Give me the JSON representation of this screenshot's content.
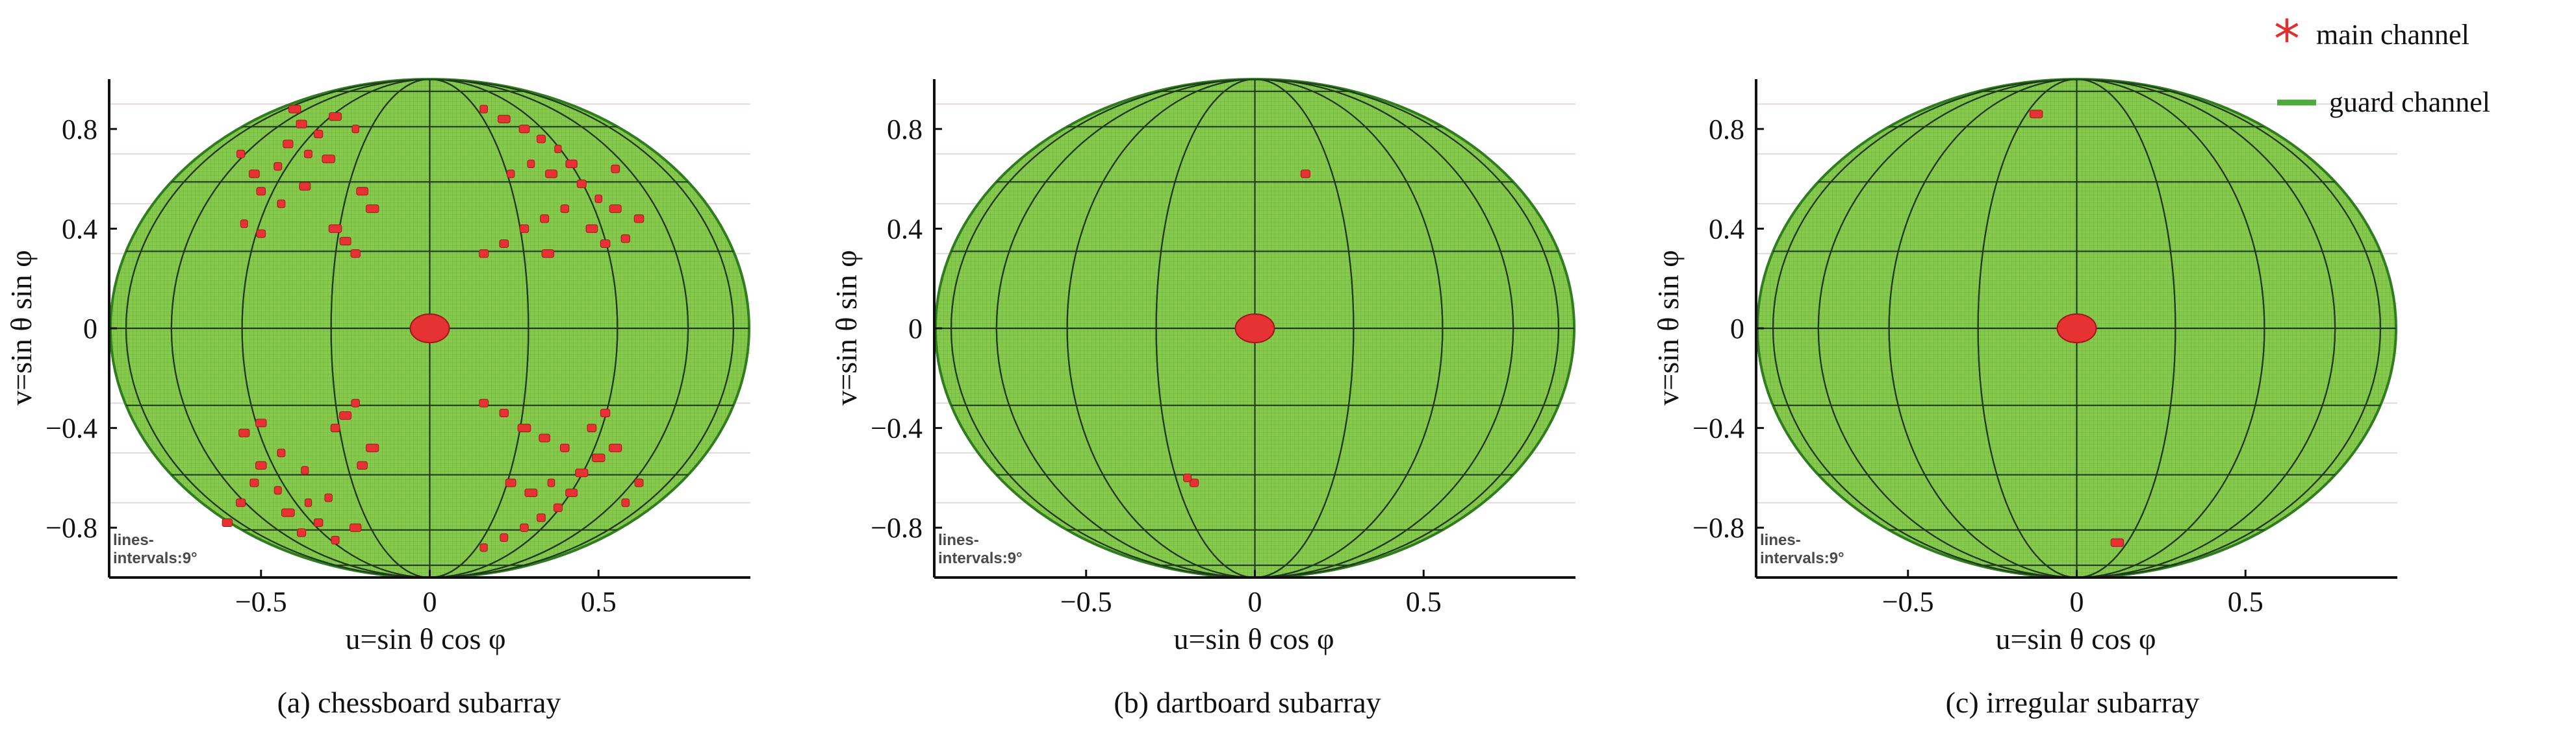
{
  "chart_data": [
    {
      "type": "scatter",
      "panel": "a",
      "caption": "(a) chessboard subarray",
      "xlabel": "u=sin θ cos φ",
      "ylabel": "v=sin θ sin φ",
      "xlim": [
        -0.95,
        0.95
      ],
      "ylim": [
        -1.0,
        1.0
      ],
      "xticks": [
        -0.5,
        0,
        0.5
      ],
      "xtick_labels": [
        "−0.5",
        "0",
        "0.5"
      ],
      "yticks": [
        -0.8,
        -0.4,
        0,
        0.4,
        0.8
      ],
      "ytick_labels": [
        "−0.8",
        "−0.4",
        "0",
        "0.4",
        "0.8"
      ],
      "grid_note": "lines-intervals:9°",
      "guard_region": "full visible hemisphere (u²+v²≤1), shown as ellipse",
      "main_channel_points": [
        {
          "u": 0.0,
          "v": 0.0,
          "size": "cluster"
        },
        {
          "u": -0.38,
          "v": 0.82
        },
        {
          "u": -0.33,
          "v": 0.78
        },
        {
          "u": -0.28,
          "v": 0.85
        },
        {
          "u": -0.22,
          "v": 0.8
        },
        {
          "u": -0.42,
          "v": 0.74
        },
        {
          "u": -0.36,
          "v": 0.7
        },
        {
          "u": -0.3,
          "v": 0.68
        },
        {
          "u": -0.45,
          "v": 0.65
        },
        {
          "u": -0.52,
          "v": 0.62
        },
        {
          "u": -0.56,
          "v": 0.7
        },
        {
          "u": -0.5,
          "v": 0.55
        },
        {
          "u": -0.44,
          "v": 0.5
        },
        {
          "u": -0.37,
          "v": 0.57
        },
        {
          "u": -0.2,
          "v": 0.55
        },
        {
          "u": -0.17,
          "v": 0.48
        },
        {
          "u": -0.5,
          "v": 0.38
        },
        {
          "u": -0.55,
          "v": 0.42
        },
        {
          "u": -0.25,
          "v": 0.35
        },
        {
          "u": -0.22,
          "v": 0.3
        },
        {
          "u": -0.28,
          "v": 0.4
        },
        {
          "u": -0.4,
          "v": 0.88
        },
        {
          "u": 0.16,
          "v": 0.88
        },
        {
          "u": 0.22,
          "v": 0.84
        },
        {
          "u": 0.28,
          "v": 0.8
        },
        {
          "u": 0.33,
          "v": 0.76
        },
        {
          "u": 0.38,
          "v": 0.72
        },
        {
          "u": 0.3,
          "v": 0.66
        },
        {
          "u": 0.24,
          "v": 0.62
        },
        {
          "u": 0.36,
          "v": 0.62
        },
        {
          "u": 0.42,
          "v": 0.66
        },
        {
          "u": 0.45,
          "v": 0.58
        },
        {
          "u": 0.5,
          "v": 0.52
        },
        {
          "u": 0.55,
          "v": 0.48
        },
        {
          "u": 0.4,
          "v": 0.48
        },
        {
          "u": 0.34,
          "v": 0.44
        },
        {
          "u": 0.28,
          "v": 0.4
        },
        {
          "u": 0.22,
          "v": 0.34
        },
        {
          "u": 0.16,
          "v": 0.3
        },
        {
          "u": 0.48,
          "v": 0.4
        },
        {
          "u": 0.52,
          "v": 0.34
        },
        {
          "u": 0.58,
          "v": 0.36
        },
        {
          "u": 0.62,
          "v": 0.44
        },
        {
          "u": 0.35,
          "v": 0.3
        },
        {
          "u": 0.55,
          "v": 0.64
        },
        {
          "u": -0.38,
          "v": -0.82
        },
        {
          "u": -0.33,
          "v": -0.78
        },
        {
          "u": -0.28,
          "v": -0.85
        },
        {
          "u": -0.22,
          "v": -0.8
        },
        {
          "u": -0.42,
          "v": -0.74
        },
        {
          "u": -0.36,
          "v": -0.7
        },
        {
          "u": -0.3,
          "v": -0.68
        },
        {
          "u": -0.45,
          "v": -0.65
        },
        {
          "u": -0.52,
          "v": -0.62
        },
        {
          "u": -0.56,
          "v": -0.7
        },
        {
          "u": -0.5,
          "v": -0.55
        },
        {
          "u": -0.44,
          "v": -0.5
        },
        {
          "u": -0.37,
          "v": -0.57
        },
        {
          "u": -0.2,
          "v": -0.55
        },
        {
          "u": -0.17,
          "v": -0.48
        },
        {
          "u": -0.5,
          "v": -0.38
        },
        {
          "u": -0.55,
          "v": -0.42
        },
        {
          "u": -0.25,
          "v": -0.35
        },
        {
          "u": -0.22,
          "v": -0.3
        },
        {
          "u": -0.28,
          "v": -0.4
        },
        {
          "u": -0.6,
          "v": -0.78
        },
        {
          "u": 0.16,
          "v": -0.88
        },
        {
          "u": 0.22,
          "v": -0.84
        },
        {
          "u": 0.28,
          "v": -0.8
        },
        {
          "u": 0.33,
          "v": -0.76
        },
        {
          "u": 0.38,
          "v": -0.72
        },
        {
          "u": 0.3,
          "v": -0.66
        },
        {
          "u": 0.24,
          "v": -0.62
        },
        {
          "u": 0.36,
          "v": -0.62
        },
        {
          "u": 0.42,
          "v": -0.66
        },
        {
          "u": 0.45,
          "v": -0.58
        },
        {
          "u": 0.5,
          "v": -0.52
        },
        {
          "u": 0.55,
          "v": -0.48
        },
        {
          "u": 0.4,
          "v": -0.48
        },
        {
          "u": 0.34,
          "v": -0.44
        },
        {
          "u": 0.28,
          "v": -0.4
        },
        {
          "u": 0.22,
          "v": -0.34
        },
        {
          "u": 0.16,
          "v": -0.3
        },
        {
          "u": 0.48,
          "v": -0.4
        },
        {
          "u": 0.52,
          "v": -0.34
        },
        {
          "u": 0.58,
          "v": -0.7
        },
        {
          "u": 0.62,
          "v": -0.62
        }
      ]
    },
    {
      "type": "scatter",
      "panel": "b",
      "caption": "(b) dartboard subarray",
      "xlabel": "u=sin θ cos φ",
      "ylabel": "v=sin θ sin φ",
      "xlim": [
        -0.95,
        0.95
      ],
      "ylim": [
        -1.0,
        1.0
      ],
      "xticks": [
        -0.5,
        0,
        0.5
      ],
      "xtick_labels": [
        "−0.5",
        "0",
        "0.5"
      ],
      "yticks": [
        -0.8,
        -0.4,
        0,
        0.4,
        0.8
      ],
      "ytick_labels": [
        "−0.8",
        "−0.4",
        "0",
        "0.4",
        "0.8"
      ],
      "grid_note": "lines-intervals:9°",
      "guard_region": "full visible hemisphere (u²+v²≤1), shown as ellipse",
      "main_channel_points": [
        {
          "u": 0.0,
          "v": 0.0,
          "size": "cluster"
        },
        {
          "u": 0.15,
          "v": 0.62
        },
        {
          "u": -0.18,
          "v": -0.62
        },
        {
          "u": -0.2,
          "v": -0.6
        }
      ]
    },
    {
      "type": "scatter",
      "panel": "c",
      "caption": "(c) irregular subarray",
      "xlabel": "u=sin θ cos φ",
      "ylabel": "v=sin θ sin φ",
      "xlim": [
        -0.95,
        0.95
      ],
      "ylim": [
        -1.0,
        1.0
      ],
      "xticks": [
        -0.5,
        0,
        0.5
      ],
      "xtick_labels": [
        "−0.5",
        "0",
        "0.5"
      ],
      "yticks": [
        -0.8,
        -0.4,
        0,
        0.4,
        0.8
      ],
      "ytick_labels": [
        "−0.8",
        "−0.4",
        "0",
        "0.4",
        "0.8"
      ],
      "grid_note": "lines-intervals:9°",
      "guard_region": "full visible hemisphere (u²+v²≤1), shown as ellipse",
      "main_channel_points": [
        {
          "u": 0.0,
          "v": 0.0,
          "size": "cluster"
        },
        {
          "u": -0.12,
          "v": 0.86
        },
        {
          "u": 0.12,
          "v": -0.86
        }
      ]
    }
  ],
  "legend": {
    "items": [
      {
        "label": "main channel",
        "marker": "asterisk",
        "color": "#e03030"
      },
      {
        "label": "guard channel",
        "marker": "line",
        "color": "#4daa3c"
      }
    ]
  },
  "colors": {
    "guard_fill": "#7dc242",
    "guard_dark": "#2f7d1f",
    "main": "#e63232",
    "grid_line": "#1f3a1f",
    "axis": "#111111"
  }
}
